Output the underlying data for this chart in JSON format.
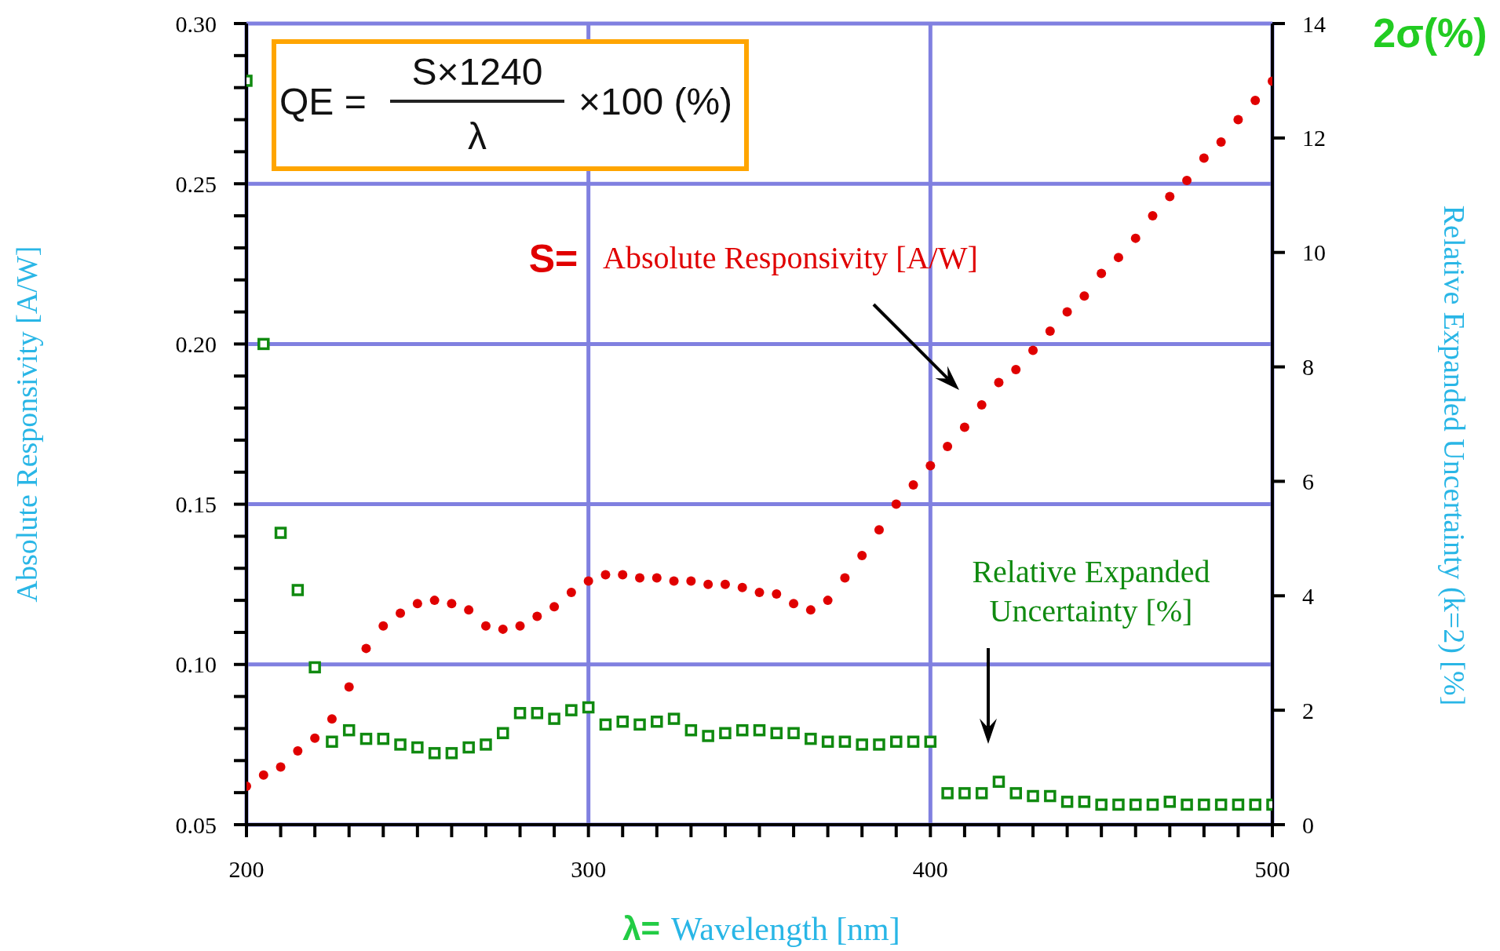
{
  "chart_data": {
    "type": "scatter",
    "xlabel": "Wavelength [nm]",
    "ylabel": "Absolute Responsivity [A/W]",
    "y2label": "Relative Expanded Uncertainty (k=2) [%]",
    "annotations": [
      "QE =",
      "S×1240",
      "λ",
      "×100 (%)",
      "S=",
      "2σ(%)",
      "λ="
    ],
    "x": [
      200,
      205,
      210,
      215,
      220,
      225,
      230,
      235,
      240,
      245,
      250,
      255,
      260,
      265,
      270,
      275,
      280,
      285,
      290,
      295,
      300,
      305,
      310,
      315,
      320,
      325,
      330,
      335,
      340,
      345,
      350,
      355,
      360,
      365,
      370,
      375,
      380,
      385,
      390,
      395,
      400,
      405,
      410,
      415,
      420,
      425,
      430,
      435,
      440,
      445,
      450,
      455,
      460,
      465,
      470,
      475,
      480,
      485,
      490,
      495,
      500
    ],
    "series": [
      {
        "name": "Absolute Responsivity [A/W]",
        "color": "#e00000",
        "marker": "circle",
        "values": [
          0.062,
          0.0655,
          0.068,
          0.073,
          0.077,
          0.083,
          0.093,
          0.105,
          0.112,
          0.116,
          0.119,
          0.12,
          0.119,
          0.117,
          0.112,
          0.111,
          0.112,
          0.115,
          0.118,
          0.1225,
          0.126,
          0.128,
          0.128,
          0.127,
          0.127,
          0.126,
          0.126,
          0.125,
          0.125,
          0.124,
          0.1225,
          0.122,
          0.119,
          0.117,
          0.12,
          0.127,
          0.134,
          0.142,
          0.15,
          0.156,
          0.162,
          0.168,
          0.174,
          0.181,
          0.188,
          0.192,
          0.198,
          0.204,
          0.21,
          0.215,
          0.222,
          0.227,
          0.233,
          0.24,
          0.246,
          0.251,
          0.258,
          0.263,
          0.27,
          0.276,
          0.282
        ]
      },
      {
        "name": "Relative Expanded Uncertainty [%]",
        "color": "#108a10",
        "marker": "square",
        "axis": "y2",
        "values": [
          13.0,
          8.4,
          5.1,
          4.1,
          2.75,
          1.45,
          1.65,
          1.5,
          1.5,
          1.4,
          1.35,
          1.25,
          1.25,
          1.35,
          1.4,
          1.6,
          1.95,
          1.95,
          1.85,
          2.0,
          2.05,
          1.75,
          1.8,
          1.75,
          1.8,
          1.85,
          1.65,
          1.55,
          1.6,
          1.65,
          1.65,
          1.6,
          1.6,
          1.5,
          1.45,
          1.45,
          1.4,
          1.4,
          1.45,
          1.45,
          1.45,
          0.55,
          0.55,
          0.55,
          0.75,
          0.55,
          0.5,
          0.5,
          0.4,
          0.4,
          0.35,
          0.35,
          0.35,
          0.35,
          0.4,
          0.35,
          0.35,
          0.35,
          0.35,
          0.35,
          0.35
        ]
      }
    ],
    "xlim": [
      200,
      500
    ],
    "xticks": [
      200,
      {
        "value": 210,
        "label": null
      },
      {
        "value": 220,
        "label": null
      },
      {
        "value": 230,
        "label": null
      },
      {
        "value": 240,
        "label": null
      },
      {
        "value": 250,
        "label": null
      },
      {
        "value": 260,
        "label": null
      },
      {
        "value": 270,
        "label": null
      },
      {
        "value": 280,
        "label": null
      },
      {
        "value": 290,
        "label": null
      },
      300,
      {
        "value": 310,
        "label": null
      },
      {
        "value": 320,
        "label": null
      },
      {
        "value": 330,
        "label": null
      },
      {
        "value": 340,
        "label": null
      },
      {
        "value": 350,
        "label": null
      },
      {
        "value": 360,
        "label": null
      },
      {
        "value": 370,
        "label": null
      },
      {
        "value": 380,
        "label": null
      },
      {
        "value": 390,
        "label": null
      },
      400,
      {
        "value": 410,
        "label": null
      },
      {
        "value": 420,
        "label": null
      },
      {
        "value": 430,
        "label": null
      },
      {
        "value": 440,
        "label": null
      },
      {
        "value": 450,
        "label": null
      },
      {
        "value": 460,
        "label": null
      },
      {
        "value": 470,
        "label": null
      },
      {
        "value": 480,
        "label": null
      },
      {
        "value": 490,
        "label": null
      },
      500
    ],
    "ylim": [
      0.05,
      0.3
    ],
    "yticks": [
      {
        "value": 0.05,
        "label": "0.05"
      },
      {
        "value": 0.06,
        "label": null
      },
      {
        "value": 0.07,
        "label": null
      },
      {
        "value": 0.08,
        "label": null
      },
      {
        "value": 0.09,
        "label": null
      },
      {
        "value": 0.1,
        "label": "0.10"
      },
      {
        "value": 0.11,
        "label": null
      },
      {
        "value": 0.12,
        "label": null
      },
      {
        "value": 0.13,
        "label": null
      },
      {
        "value": 0.14,
        "label": null
      },
      {
        "value": 0.15,
        "label": "0.15"
      },
      {
        "value": 0.16,
        "label": null
      },
      {
        "value": 0.17,
        "label": null
      },
      {
        "value": 0.18,
        "label": null
      },
      {
        "value": 0.19,
        "label": null
      },
      {
        "value": 0.2,
        "label": "0.20"
      },
      {
        "value": 0.21,
        "label": null
      },
      {
        "value": 0.22,
        "label": null
      },
      {
        "value": 0.23,
        "label": null
      },
      {
        "value": 0.24,
        "label": null
      },
      {
        "value": 0.25,
        "label": "0.25"
      },
      {
        "value": 0.26,
        "label": null
      },
      {
        "value": 0.27,
        "label": null
      },
      {
        "value": 0.28,
        "label": null
      },
      {
        "value": 0.29,
        "label": null
      },
      {
        "value": 0.3,
        "label": "0.30"
      }
    ],
    "y2lim": [
      0,
      14
    ],
    "y2ticks": [
      0,
      2,
      4,
      6,
      8,
      10,
      12,
      14
    ],
    "grid": true
  }
}
